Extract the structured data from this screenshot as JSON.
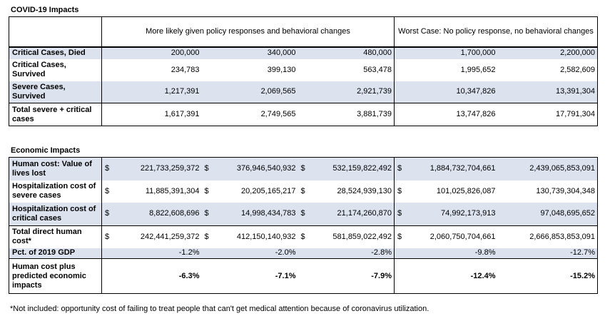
{
  "covid": {
    "title": "COVID-19 Impacts",
    "header_likely": "More likely given policy responses and behavioral changes",
    "header_worst": "Worst Case: No policy response, no behavioral changes",
    "rows": [
      {
        "label": "Critical Cases, Died",
        "values": [
          "200,000",
          "340,000",
          "480,000",
          "1,700,000",
          "2,200,000"
        ]
      },
      {
        "label": "Critical Cases, Survived",
        "values": [
          "234,783",
          "399,130",
          "563,478",
          "1,995,652",
          "2,582,609"
        ]
      },
      {
        "label": "Severe Cases, Survived",
        "values": [
          "1,217,391",
          "2,069,565",
          "2,921,739",
          "10,347,826",
          "13,391,304"
        ]
      },
      {
        "label": "Total severe + critical cases",
        "values": [
          "1,617,391",
          "2,749,565",
          "3,881,739",
          "13,747,826",
          "17,791,304"
        ]
      }
    ]
  },
  "economic": {
    "title": "Economic Impacts",
    "currency": "$",
    "rows": [
      {
        "label": "Human cost: Value of lives lost",
        "values": [
          "221,733,259,372",
          "376,946,540,932",
          "532,159,822,492",
          "1,884,732,704,661",
          "2,439,065,853,091"
        ]
      },
      {
        "label": "Hospitalization cost of severe cases",
        "values": [
          "11,885,391,304",
          "20,205,165,217",
          "28,524,939,130",
          "101,025,826,087",
          "130,739,304,348"
        ]
      },
      {
        "label": "Hospitalization cost of critical cases",
        "values": [
          "8,822,608,696",
          "14,998,434,783",
          "21,174,260,870",
          "74,992,173,913",
          "97,048,695,652"
        ]
      },
      {
        "label": "Total direct human cost*",
        "values": [
          "242,441,259,372",
          "412,150,140,932",
          "581,859,022,492",
          "2,060,750,704,661",
          "2,666,853,853,091"
        ]
      },
      {
        "label": "Pct. of 2019 GDP",
        "values": [
          "-1.2%",
          "-2.0%",
          "-2.8%",
          "-9.8%",
          "-12.7%"
        ]
      },
      {
        "label": "Human cost plus predicted economic impacts",
        "values": [
          "-6.3%",
          "-7.1%",
          "-7.9%",
          "-12.4%",
          "-15.2%"
        ]
      }
    ]
  },
  "footnote": "*Not included: opportunity cost of failing to treat people that can't get medical attention because of coronavirus utilization."
}
